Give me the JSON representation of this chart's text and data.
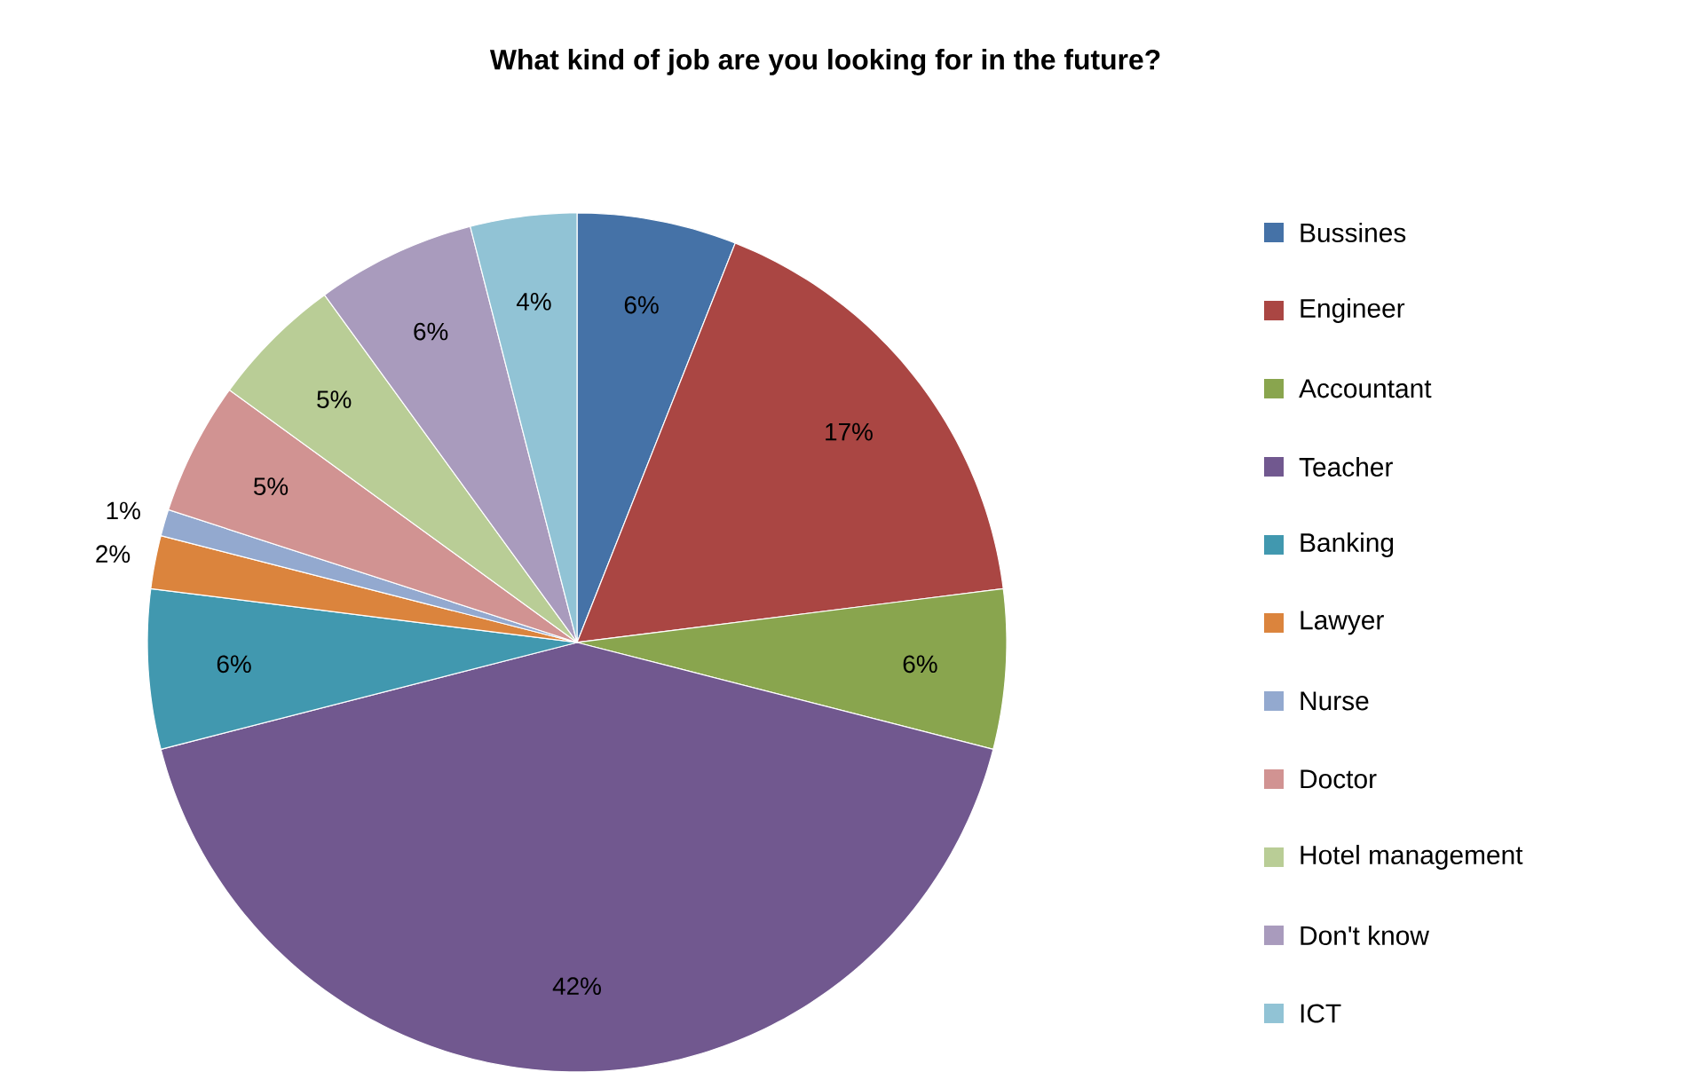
{
  "chart_data": {
    "type": "pie",
    "title": "What kind of job are you looking for in the future?",
    "categories": [
      "Bussines",
      "Engineer",
      "Accountant",
      "Teacher",
      "Banking",
      "Lawyer",
      "Nurse",
      "Doctor",
      "Hotel management",
      "Don't know",
      "ICT"
    ],
    "values": [
      6,
      17,
      6,
      42,
      6,
      2,
      1,
      5,
      5,
      6,
      4
    ],
    "value_labels": [
      "6%",
      "17%",
      "6%",
      "42%",
      "6%",
      "2%",
      "1%",
      "5%",
      "5%",
      "6%",
      "4%"
    ],
    "colors": [
      "#4572a7",
      "#aa4643",
      "#89a54e",
      "#71588f",
      "#4198af",
      "#db843d",
      "#93a9cf",
      "#d19392",
      "#b9cd96",
      "#a99bbd",
      "#91c3d5"
    ],
    "legend": "right"
  }
}
